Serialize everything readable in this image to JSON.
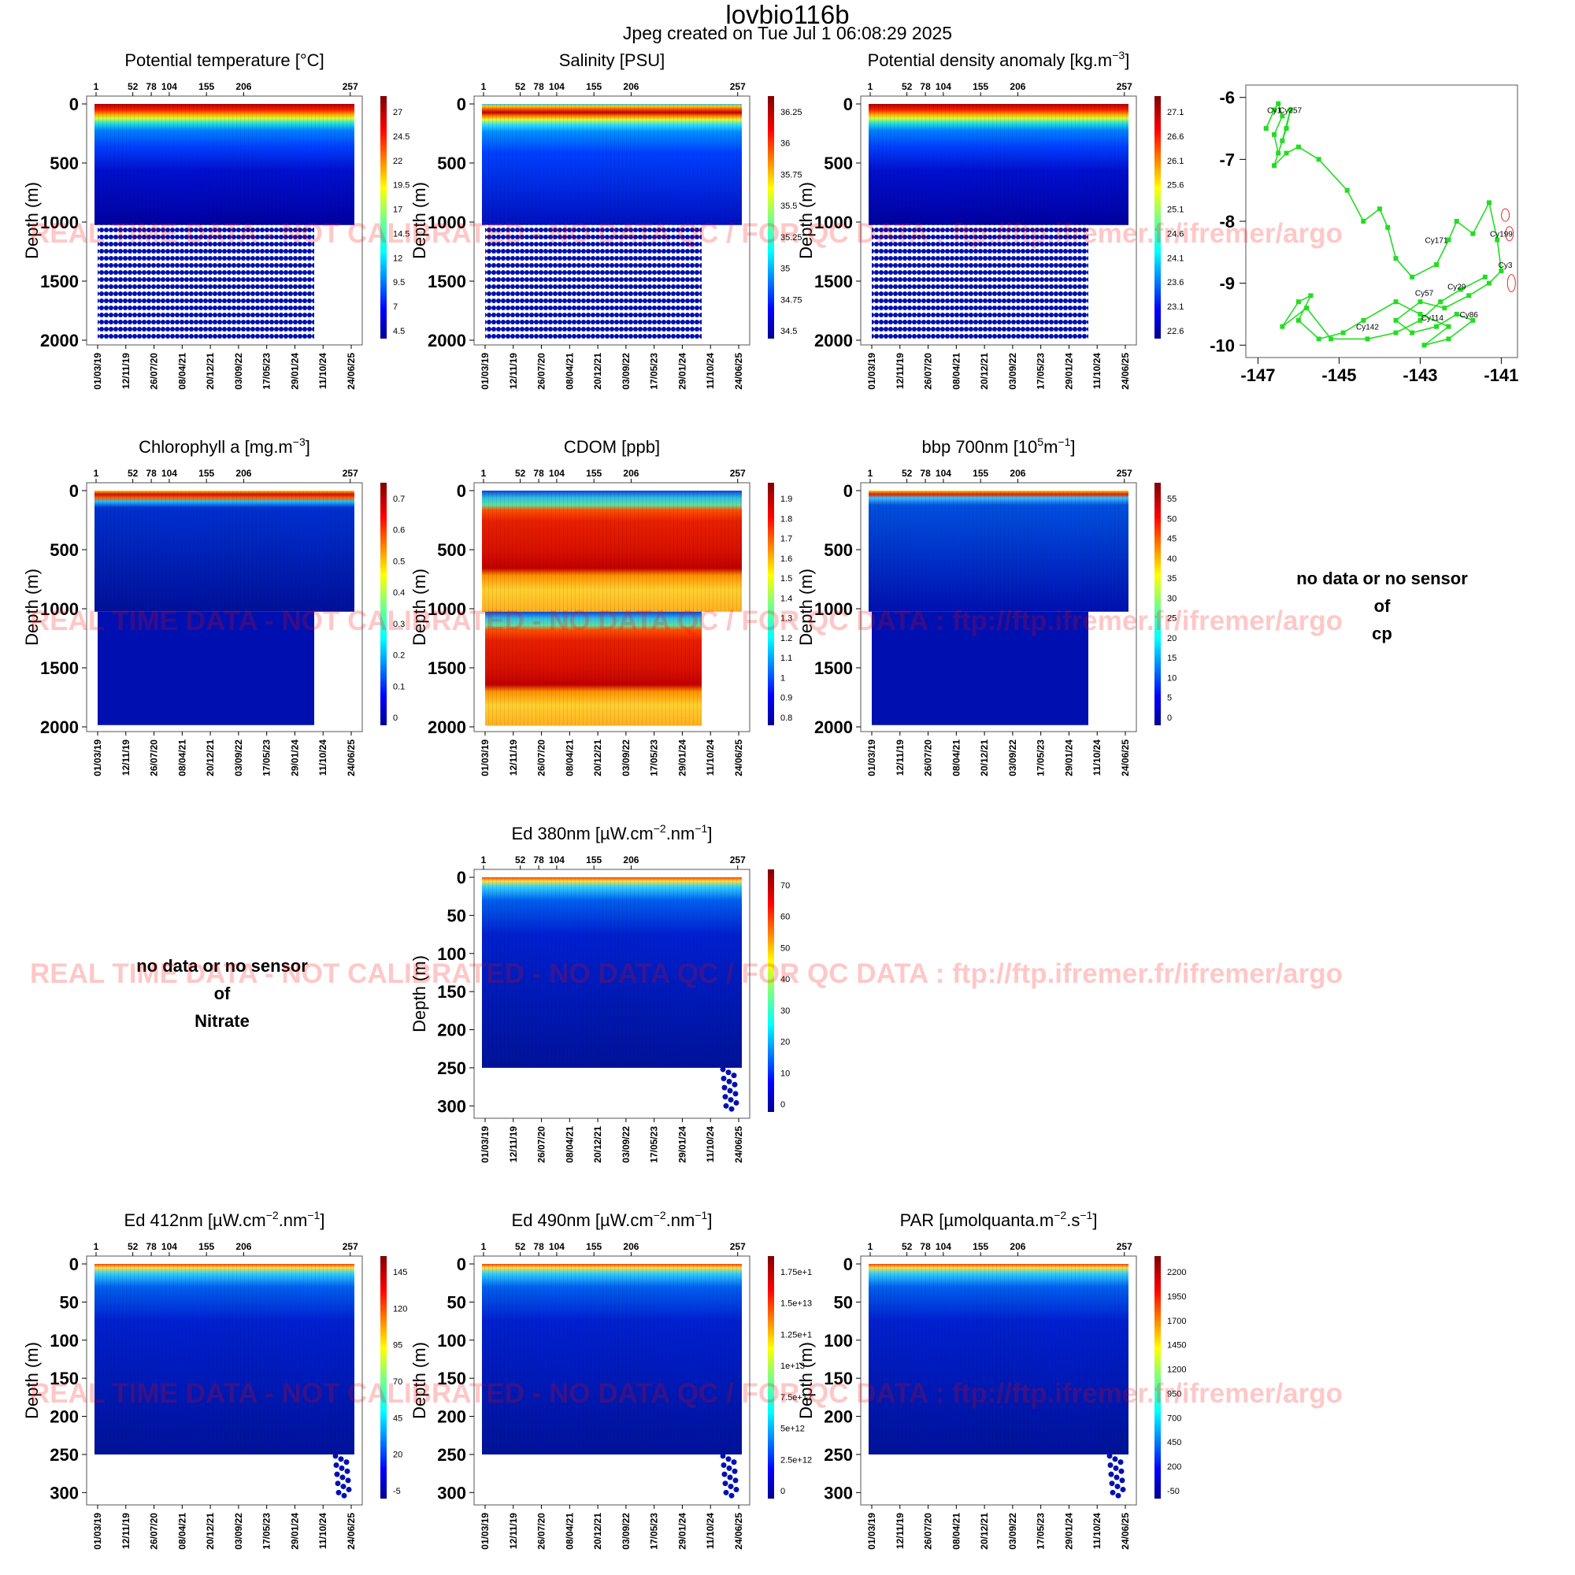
{
  "page": {
    "title": "lovbio116b",
    "subtitle": "Jpeg created on  Tue Jul  1 06:08:29 2025",
    "watermark": "REAL TIME DATA - NOT CALIBRATED - NO DATA QC  /  FOR QC DATA : ftp://ftp.ifremer.fr/ifremer/argo",
    "y_axis_label": "Depth (m)",
    "cycle_ticks": [
      "1",
      "52",
      "78",
      "104",
      "155",
      "206",
      "257"
    ],
    "date_ticks": [
      "01/03/19",
      "12/11/19",
      "26/07/20",
      "08/04/21",
      "20/12/21",
      "03/09/22",
      "17/05/23",
      "29/01/24",
      "11/10/24",
      "24/06/25"
    ]
  },
  "chart_data": [
    {
      "id": "temp",
      "type": "heatmap",
      "title": "Potential temperature [°C]",
      "ylabel": "Depth (m)",
      "ylim": [
        0,
        2000
      ],
      "yticks": [
        "0",
        "500",
        "1000",
        "1500",
        "2000"
      ],
      "colorbar": [
        "27",
        "24.5",
        "22",
        "19.5",
        "17",
        "14.5",
        "12",
        "9.5",
        "7",
        "4.5"
      ]
    },
    {
      "id": "sal",
      "type": "heatmap",
      "title": "Salinity [PSU]",
      "ylabel": "Depth (m)",
      "ylim": [
        0,
        2000
      ],
      "yticks": [
        "0",
        "500",
        "1000",
        "1500",
        "2000"
      ],
      "colorbar": [
        "36.25",
        "36",
        "35.75",
        "35.5",
        "35.25",
        "35",
        "34.75",
        "34.5"
      ]
    },
    {
      "id": "dens",
      "type": "heatmap",
      "title": "Potential density anomaly [kg.m",
      "title_sup": "−3",
      "title_end": "]",
      "ylabel": "Depth (m)",
      "ylim": [
        0,
        2000
      ],
      "yticks": [
        "0",
        "500",
        "1000",
        "1500",
        "2000"
      ],
      "colorbar": [
        "27.1",
        "26.6",
        "26.1",
        "25.6",
        "25.1",
        "24.6",
        "24.1",
        "23.6",
        "23.1",
        "22.6"
      ]
    },
    {
      "id": "chla",
      "type": "heatmap",
      "title": "Chlorophyll a [mg.m",
      "title_sup": "−3",
      "title_end": "]",
      "ylabel": "Depth (m)",
      "ylim": [
        0,
        2000
      ],
      "yticks": [
        "0",
        "500",
        "1000",
        "1500",
        "2000"
      ],
      "colorbar": [
        "0.7",
        "0.6",
        "0.5",
        "0.4",
        "0.3",
        "0.2",
        "0.1",
        "0"
      ]
    },
    {
      "id": "cdom",
      "type": "heatmap",
      "title": "CDOM  [ppb]",
      "ylabel": "Depth (m)",
      "ylim": [
        0,
        2000
      ],
      "yticks": [
        "0",
        "500",
        "1000",
        "1500",
        "2000"
      ],
      "colorbar": [
        "1.9",
        "1.8",
        "1.7",
        "1.6",
        "1.5",
        "1.4",
        "1.3",
        "1.2",
        "1.1",
        "1",
        "0.9",
        "0.8"
      ]
    },
    {
      "id": "bbp",
      "type": "heatmap",
      "title": "bbp 700nm [10",
      "title_sup": "5",
      "title_mid": "m",
      "title_sup2": "−1",
      "title_end": "]",
      "ylabel": "Depth (m)",
      "ylim": [
        0,
        2000
      ],
      "yticks": [
        "0",
        "500",
        "1000",
        "1500",
        "2000"
      ],
      "colorbar": [
        "55",
        "50",
        "45",
        "40",
        "35",
        "30",
        "25",
        "20",
        "15",
        "10",
        "5",
        "0"
      ]
    },
    {
      "id": "ed380",
      "type": "heatmap",
      "title": "Ed 380nm [µW.cm",
      "title_sup": "−2",
      "title_mid": ".nm",
      "title_sup2": "−1",
      "title_end": "]",
      "ylabel": "Depth (m)",
      "ylim": [
        0,
        310
      ],
      "yticks": [
        "0",
        "50",
        "100",
        "150",
        "200",
        "250",
        "300"
      ],
      "colorbar": [
        "70",
        "60",
        "50",
        "40",
        "30",
        "20",
        "10",
        "0"
      ]
    },
    {
      "id": "ed412",
      "type": "heatmap",
      "title": "Ed 412nm [µW.cm",
      "title_sup": "−2",
      "title_mid": ".nm",
      "title_sup2": "−1",
      "title_end": "]",
      "ylabel": "Depth (m)",
      "ylim": [
        0,
        310
      ],
      "yticks": [
        "0",
        "50",
        "100",
        "150",
        "200",
        "250",
        "300"
      ],
      "colorbar": [
        "145",
        "120",
        "95",
        "70",
        "45",
        "20",
        "-5"
      ]
    },
    {
      "id": "ed490",
      "type": "heatmap",
      "title": "Ed 490nm [µW.cm",
      "title_sup": "−2",
      "title_mid": ".nm",
      "title_sup2": "−1",
      "title_end": "]",
      "ylabel": "Depth (m)",
      "ylim": [
        0,
        310
      ],
      "yticks": [
        "0",
        "50",
        "100",
        "150",
        "200",
        "250",
        "300"
      ],
      "colorbar": [
        "1.75e+1",
        "1.5e+13",
        "1.25e+1",
        "1e+13",
        "7.5e+12",
        "5e+12",
        "2.5e+12",
        "0"
      ]
    },
    {
      "id": "par",
      "type": "heatmap",
      "title": "PAR [µmolquanta.m",
      "title_sup": "−2",
      "title_mid": ".s",
      "title_sup2": "−1",
      "title_end": "]",
      "ylabel": "Depth (m)",
      "ylim": [
        0,
        310
      ],
      "yticks": [
        "0",
        "50",
        "100",
        "150",
        "200",
        "250",
        "300"
      ],
      "colorbar": [
        "2200",
        "1950",
        "1700",
        "1450",
        "1200",
        "950",
        "700",
        "450",
        "200",
        "-50"
      ]
    },
    {
      "id": "map",
      "type": "scatter",
      "xlim": [
        -147.3,
        -140.6
      ],
      "ylim": [
        -10.2,
        -5.8
      ],
      "xticks": [
        "-147",
        "-145",
        "-143",
        "-141"
      ],
      "yticks": [
        "-6",
        "-7",
        "-8",
        "-9",
        "-10"
      ],
      "labels": [
        "Cy1",
        "Cy257",
        "Cy199",
        "Cy171",
        "Cy3",
        "Cy29",
        "Cy57",
        "Cy86",
        "Cy114",
        "Cy142"
      ],
      "trajectory_color": "#22dd22"
    }
  ],
  "no_data": [
    {
      "line1": "no data or no sensor",
      "line2": "of",
      "line3": "cp"
    },
    {
      "line1": "no data or no sensor",
      "line2": "of",
      "line3": "Nitrate"
    }
  ]
}
